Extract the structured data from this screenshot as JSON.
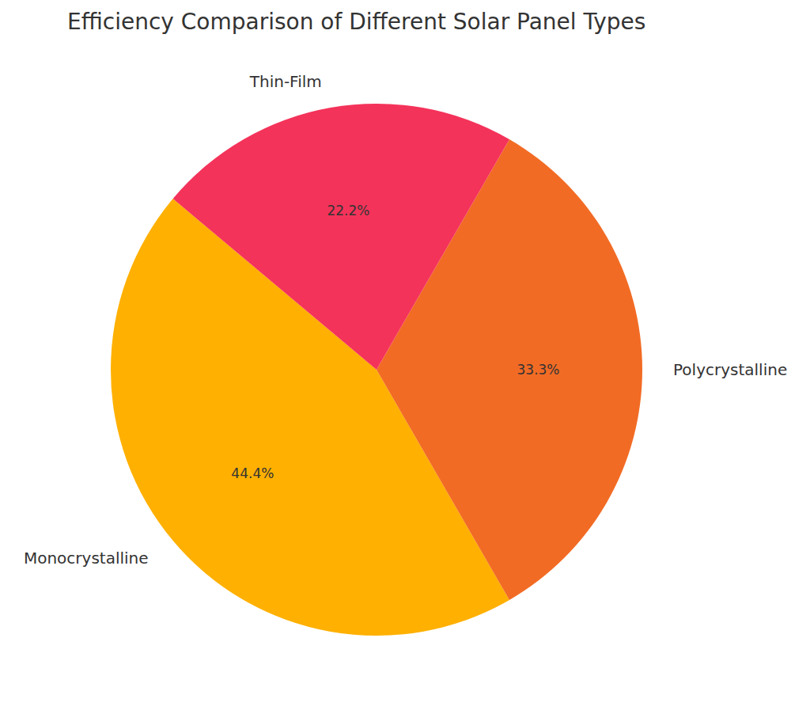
{
  "chart_data": {
    "type": "pie",
    "title": "Efficiency Comparison of Different Solar Panel Types",
    "categories": [
      "Monocrystalline",
      "Polycrystalline",
      "Thin-Film"
    ],
    "values": [
      44.4,
      33.3,
      22.2
    ],
    "value_labels": [
      "44.4%",
      "33.3%",
      "22.2%"
    ],
    "colors": [
      "#ffb000",
      "#f26b24",
      "#f4335a"
    ],
    "data_labels": true
  }
}
